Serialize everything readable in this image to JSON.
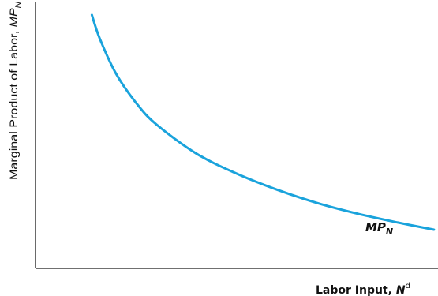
{
  "chart_data": {
    "type": "line",
    "title": "",
    "ylabel": {
      "main": "Marginal Product of Labor, ",
      "var": "MP",
      "sub": "N"
    },
    "xlabel": {
      "main": "Labor Input, ",
      "var": "N",
      "sup": "d"
    },
    "ticks": false,
    "grid": false,
    "xlim": [
      0,
      10
    ],
    "ylim": [
      0,
      10
    ],
    "series": [
      {
        "name": "MPN",
        "label_var": "MP",
        "label_sub": "N",
        "color": "#1aa3dc",
        "points": [
          [
            1.4,
            9.5
          ],
          [
            1.6,
            8.6
          ],
          [
            2.0,
            7.3
          ],
          [
            2.5,
            6.2
          ],
          [
            3.0,
            5.4
          ],
          [
            4.0,
            4.3
          ],
          [
            5.0,
            3.55
          ],
          [
            6.0,
            2.95
          ],
          [
            7.0,
            2.45
          ],
          [
            8.0,
            2.05
          ],
          [
            9.0,
            1.72
          ],
          [
            9.9,
            1.45
          ]
        ]
      }
    ]
  }
}
